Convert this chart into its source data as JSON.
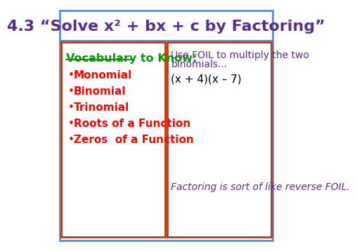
{
  "title": "4.3 “Solve x² + bx + c by Factoring”",
  "title_color": "#5b2d8e",
  "title_fontsize": 16,
  "bg_color": "#ffffff",
  "outer_border_color": "#5b8dd9",
  "left_panel": {
    "border_color": "#cc3300",
    "header": "Vocabulary to Know:",
    "header_color": "#009900",
    "items": [
      "Monomial",
      "Binomial",
      "Trinomial",
      "Roots of a Function",
      "Zeros  of a Function"
    ],
    "item_color": "#ff0000",
    "item_fontsize": 11,
    "header_fontsize": 11.5
  },
  "right_panel": {
    "border_color": "#cc3300",
    "line1": "Use FOIL to multiply the two",
    "line2": "binomials...",
    "line1_color": "#5b2d8e",
    "equation": "(x + 4)(x – 7)",
    "equation_color": "#000000",
    "footer": "Factoring is sort of like reverse FOIL.",
    "footer_color": "#5b2d8e",
    "text_fontsize": 10,
    "eq_fontsize": 11
  }
}
